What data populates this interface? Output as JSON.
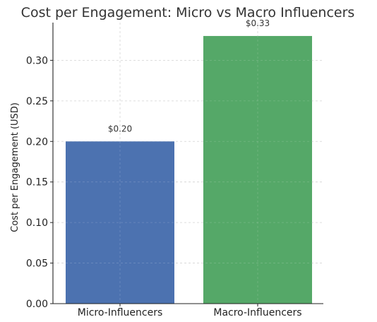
{
  "chart_data": {
    "type": "bar",
    "title": "Cost per Engagement: Micro vs Macro Influencers",
    "xlabel": "",
    "ylabel": "Cost per Engagement (USD)",
    "categories": [
      "Micro-Influencers",
      "Macro-Influencers"
    ],
    "values": [
      0.2,
      0.33
    ],
    "value_labels": [
      "$0.20",
      "$0.33"
    ],
    "colors": [
      "#4c72b0",
      "#55a868"
    ],
    "ylim": [
      0,
      0.3465
    ],
    "yticks": [
      0.0,
      0.05,
      0.1,
      0.15,
      0.2,
      0.25,
      0.3
    ],
    "ytick_labels": [
      "0.00",
      "0.05",
      "0.10",
      "0.15",
      "0.20",
      "0.25",
      "0.30"
    ],
    "grid": true,
    "legend": "none"
  }
}
